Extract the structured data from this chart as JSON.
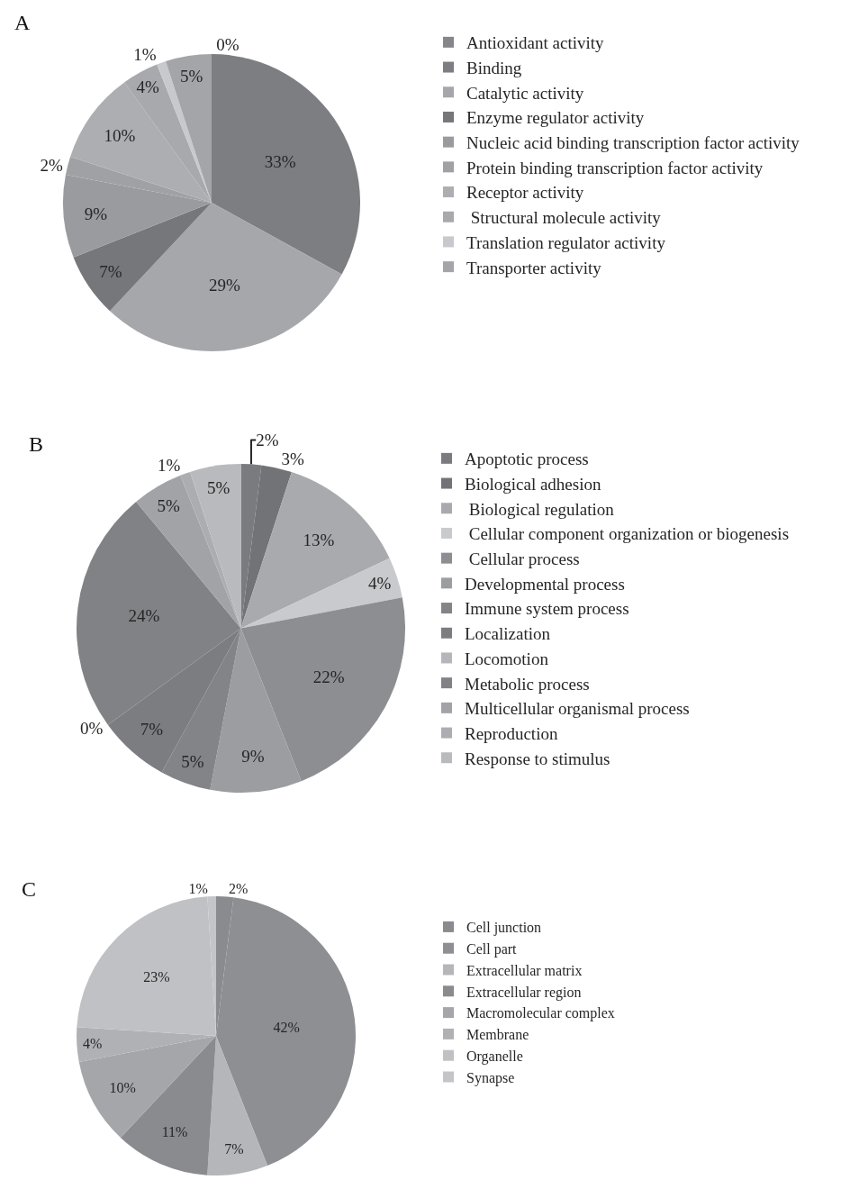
{
  "chart_data": [
    {
      "type": "pie",
      "title": "A",
      "legend": "right",
      "categories": [
        "Antioxidant activity",
        "Binding",
        "Catalytic activity",
        "Enzyme regulator activity",
        "Nucleic acid binding transcription factor activity",
        "Protein binding transcription factor activity",
        "Receptor activity",
        " Structural molecule activity",
        "Translation regulator activity",
        "Transporter activity"
      ],
      "values": [
        0,
        33,
        29,
        7,
        9,
        2,
        10,
        4,
        1,
        5
      ],
      "value_labels": [
        "0%",
        "33%",
        "29%",
        "7%",
        "9%",
        "2%",
        "10%",
        "4%",
        "1%",
        "5%"
      ],
      "colors": [
        "#858689",
        "#7d7e82",
        "#a6a7ab",
        "#76777b",
        "#9a9b9f",
        "#a0a1a5",
        "#adaeb2",
        "#a8a9ad",
        "#c8c9cc",
        "#a4a5a9"
      ]
    },
    {
      "type": "pie",
      "title": "B",
      "legend": "right",
      "categories": [
        "Apoptotic process",
        "Biological adhesion",
        " Biological regulation",
        " Cellular component organization or biogenesis",
        " Cellular process",
        "Developmental process",
        "Immune system process",
        "Localization",
        "Locomotion",
        "Metabolic process",
        "Multicellular organismal process",
        "Reproduction",
        "Response to stimulus"
      ],
      "values": [
        2,
        3,
        13,
        4,
        22,
        9,
        5,
        7,
        0,
        24,
        5,
        1,
        5
      ],
      "value_labels": [
        "2%",
        "3%",
        "13%",
        "4%",
        "22%",
        "9%",
        "5%",
        "7%",
        "0%",
        "24%",
        "5%",
        "1%",
        "5%"
      ],
      "colors": [
        "#7a7b7f",
        "#727377",
        "#a9aaae",
        "#c9cacd",
        "#8d8e92",
        "#9c9da1",
        "#838488",
        "#7c7d81",
        "#b5b6b9",
        "#818286",
        "#a2a3a7",
        "#acadb1",
        "#b9babd"
      ]
    },
    {
      "type": "pie",
      "title": "C",
      "legend": "right",
      "categories": [
        "Cell junction",
        "Cell part",
        "Extracellular matrix",
        "Extracellular region",
        "Macromolecular complex",
        "Membrane",
        "Organelle",
        "Synapse"
      ],
      "values": [
        2,
        42,
        7,
        11,
        10,
        4,
        23,
        1
      ],
      "value_labels": [
        "2%",
        "42%",
        "7%",
        "11%",
        "10%",
        "4%",
        "23%",
        "1%"
      ],
      "colors": [
        "#8a8b8f",
        "#8e8f93",
        "#b5b6b9",
        "#8a8b8f",
        "#a5a6aa",
        "#b0b1b5",
        "#c0c1c4",
        "#c4c5c8"
      ]
    }
  ]
}
